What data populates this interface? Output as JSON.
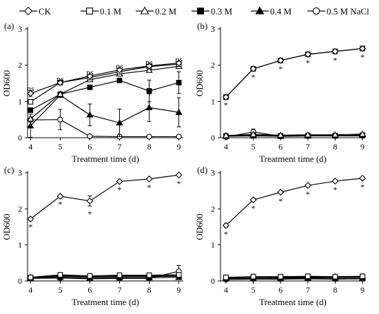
{
  "legend": {
    "entries": [
      {
        "label": "CK",
        "marker": "diamond-open"
      },
      {
        "label": "0.1 M",
        "marker": "square-open"
      },
      {
        "label": "0.2 M",
        "marker": "triangle-open"
      },
      {
        "label": "0.3 M",
        "marker": "square-filled"
      },
      {
        "label": "0.4 M",
        "marker": "triangle-filled"
      },
      {
        "label": "0.5 M NaCl",
        "marker": "circle-open"
      }
    ]
  },
  "chart_data": [
    {
      "type": "line",
      "panel_label": "(a)",
      "xlabel": "Treatment time (d)",
      "ylabel": "OD600",
      "x": [
        4,
        5,
        6,
        7,
        8,
        9
      ],
      "xlim": [
        3.9,
        9.15
      ],
      "ylim": [
        0,
        3
      ],
      "yticks": [
        0,
        1,
        2,
        3
      ],
      "series": [
        {
          "name": "CK",
          "marker": "diamond-open",
          "values": [
            1.22,
            1.52,
            1.7,
            1.87,
            1.98,
            2.06
          ],
          "errors": [
            0.08,
            0.04,
            0.04,
            0.04,
            0.04,
            0.04
          ]
        },
        {
          "name": "0.1 M",
          "marker": "square-open",
          "values": [
            0.99,
            1.52,
            1.66,
            1.82,
            1.96,
            2.03
          ],
          "errors": [
            0.06,
            0.04,
            0.04,
            0.04,
            0.04,
            0.04
          ]
        },
        {
          "name": "0.2 M",
          "marker": "triangle-open",
          "values": [
            0.52,
            1.2,
            1.6,
            1.76,
            1.86,
            1.97
          ],
          "errors": [
            0.05,
            0.05,
            0.04,
            0.04,
            0.04,
            0.04
          ]
        },
        {
          "name": "0.3 M",
          "marker": "square-filled",
          "values": [
            0.76,
            1.2,
            1.39,
            1.58,
            1.29,
            1.52
          ],
          "errors": [
            0.06,
            0.05,
            0.04,
            0.03,
            0.3,
            0.3
          ]
        },
        {
          "name": "0.4 M",
          "marker": "triangle-filled",
          "values": [
            0.33,
            1.17,
            0.63,
            0.41,
            0.83,
            0.7
          ],
          "errors": [
            0.32,
            0.05,
            0.3,
            0.38,
            0.38,
            0.4
          ]
        },
        {
          "name": "0.5 M NaCl",
          "marker": "circle-open",
          "values": [
            0.49,
            0.5,
            0.04,
            0.03,
            0.03,
            0.03
          ],
          "errors": [
            0.05,
            0.28,
            0.0,
            0.0,
            0.0,
            0.0
          ]
        }
      ],
      "annotations": [
        {
          "x": 4,
          "y": 1.36,
          "text": "ns"
        },
        {
          "x": 5,
          "y": 1.62,
          "text": "ns"
        },
        {
          "x": 6,
          "y": 1.8,
          "text": "ns"
        },
        {
          "x": 7,
          "y": 1.97,
          "text": "ns"
        },
        {
          "x": 8,
          "y": 2.08,
          "text": "ns"
        },
        {
          "x": 9,
          "y": 2.16,
          "text": "ns"
        }
      ]
    },
    {
      "type": "line",
      "panel_label": "(b)",
      "xlabel": "Treatment time (d)",
      "ylabel": "OD600",
      "x": [
        4,
        5,
        6,
        7,
        8,
        9
      ],
      "xlim": [
        3.8,
        9.1
      ],
      "ylim": [
        0,
        3
      ],
      "yticks": [
        0,
        1,
        2,
        3
      ],
      "series": [
        {
          "name": "CK",
          "marker": "diamond-open",
          "values": [
            1.12,
            1.9,
            2.13,
            2.3,
            2.38,
            2.46
          ],
          "errors": [
            0.05,
            0.03,
            0.03,
            0.03,
            0.03,
            0.03
          ]
        },
        {
          "name": "0.1 M",
          "marker": "square-open",
          "values": [
            1.12,
            1.9,
            2.13,
            2.3,
            2.38,
            2.46
          ],
          "errors": [
            0.05,
            0.03,
            0.03,
            0.03,
            0.03,
            0.03
          ]
        },
        {
          "name": "0.2 M",
          "marker": "triangle-open",
          "values": [
            0.06,
            0.09,
            0.07,
            0.08,
            0.08,
            0.1
          ],
          "errors": [
            0.02,
            0.04,
            0.02,
            0.02,
            0.02,
            0.02
          ]
        },
        {
          "name": "0.3 M",
          "marker": "square-filled",
          "values": [
            0.05,
            0.07,
            0.05,
            0.06,
            0.06,
            0.07
          ],
          "errors": [
            0.02,
            0.03,
            0.02,
            0.02,
            0.02,
            0.02
          ]
        },
        {
          "name": "0.4 M",
          "marker": "triangle-filled",
          "values": [
            0.04,
            0.05,
            0.04,
            0.05,
            0.05,
            0.08
          ],
          "errors": [
            0.02,
            0.02,
            0.02,
            0.02,
            0.02,
            0.02
          ]
        },
        {
          "name": "0.5 M NaCl",
          "marker": "circle-open",
          "values": [
            0.02,
            0.16,
            0.04,
            0.05,
            0.05,
            0.05
          ],
          "errors": [
            0.01,
            0.08,
            0.02,
            0.02,
            0.02,
            0.02
          ]
        }
      ],
      "annotations": [
        {
          "x": 4,
          "y": 0.9,
          "text": "*"
        },
        {
          "x": 5,
          "y": 1.67,
          "text": "*"
        },
        {
          "x": 6,
          "y": 1.9,
          "text": "*"
        },
        {
          "x": 7,
          "y": 2.07,
          "text": "*"
        },
        {
          "x": 8,
          "y": 2.14,
          "text": "*"
        },
        {
          "x": 9,
          "y": 2.22,
          "text": "*"
        }
      ]
    },
    {
      "type": "line",
      "panel_label": "(c)",
      "xlabel": "Treatment time (d)",
      "ylabel": "OD600",
      "x": [
        4,
        5,
        6,
        7,
        8,
        9
      ],
      "xlim": [
        3.9,
        9.15
      ],
      "ylim": [
        0,
        3
      ],
      "yticks": [
        0,
        1,
        2,
        3
      ],
      "series": [
        {
          "name": "CK",
          "marker": "diamond-open",
          "values": [
            1.72,
            2.35,
            2.22,
            2.76,
            2.83,
            2.94
          ],
          "errors": [
            0.03,
            0.03,
            0.14,
            0.03,
            0.03,
            0.03
          ]
        },
        {
          "name": "0.1 M",
          "marker": "square-open",
          "values": [
            0.1,
            0.17,
            0.14,
            0.16,
            0.16,
            0.17
          ],
          "errors": [
            0.02,
            0.03,
            0.03,
            0.03,
            0.03,
            0.03
          ]
        },
        {
          "name": "0.2 M",
          "marker": "triangle-open",
          "values": [
            0.1,
            0.15,
            0.12,
            0.14,
            0.14,
            0.16
          ],
          "errors": [
            0.02,
            0.03,
            0.03,
            0.03,
            0.03,
            0.03
          ]
        },
        {
          "name": "0.3 M",
          "marker": "square-filled",
          "values": [
            0.09,
            0.13,
            0.11,
            0.12,
            0.12,
            0.13
          ],
          "errors": [
            0.02,
            0.03,
            0.03,
            0.03,
            0.03,
            0.03
          ]
        },
        {
          "name": "0.4 M",
          "marker": "triangle-filled",
          "values": [
            0.08,
            0.1,
            0.08,
            0.09,
            0.09,
            0.1
          ],
          "errors": [
            0.02,
            0.02,
            0.02,
            0.02,
            0.02,
            0.02
          ]
        },
        {
          "name": "0.5 M NaCl",
          "marker": "circle-open",
          "values": [
            0.07,
            0.08,
            0.06,
            0.07,
            0.07,
            0.27
          ],
          "errors": [
            0.02,
            0.02,
            0.02,
            0.02,
            0.02,
            0.16
          ]
        }
      ],
      "annotations": [
        {
          "x": 4,
          "y": 1.5,
          "text": "*"
        },
        {
          "x": 5,
          "y": 2.13,
          "text": "*"
        },
        {
          "x": 6,
          "y": 1.86,
          "text": "*"
        },
        {
          "x": 7,
          "y": 2.53,
          "text": "*"
        },
        {
          "x": 8,
          "y": 2.6,
          "text": "*"
        },
        {
          "x": 9,
          "y": 2.7,
          "text": "*"
        }
      ]
    },
    {
      "type": "line",
      "panel_label": "(d)",
      "xlabel": "Treatment time (d)",
      "ylabel": "OD600",
      "x": [
        4,
        5,
        6,
        7,
        8,
        9
      ],
      "xlim": [
        3.8,
        9.1
      ],
      "ylim": [
        0,
        3
      ],
      "yticks": [
        0,
        1,
        2,
        3
      ],
      "series": [
        {
          "name": "CK",
          "marker": "diamond-open",
          "values": [
            1.54,
            2.25,
            2.46,
            2.65,
            2.77,
            2.85
          ],
          "errors": [
            0.05,
            0.03,
            0.03,
            0.03,
            0.03,
            0.03
          ]
        },
        {
          "name": "0.1 M",
          "marker": "square-open",
          "values": [
            0.1,
            0.12,
            0.12,
            0.13,
            0.12,
            0.13
          ],
          "errors": [
            0.02,
            0.02,
            0.02,
            0.02,
            0.02,
            0.02
          ]
        },
        {
          "name": "0.2 M",
          "marker": "triangle-open",
          "values": [
            0.09,
            0.11,
            0.1,
            0.12,
            0.11,
            0.12
          ],
          "errors": [
            0.02,
            0.02,
            0.02,
            0.02,
            0.02,
            0.02
          ]
        },
        {
          "name": "0.3 M",
          "marker": "square-filled",
          "values": [
            0.08,
            0.1,
            0.09,
            0.1,
            0.1,
            0.11
          ],
          "errors": [
            0.02,
            0.02,
            0.02,
            0.02,
            0.02,
            0.02
          ]
        },
        {
          "name": "0.4 M",
          "marker": "triangle-filled",
          "values": [
            0.06,
            0.07,
            0.07,
            0.08,
            0.07,
            0.08
          ],
          "errors": [
            0.02,
            0.02,
            0.02,
            0.02,
            0.02,
            0.02
          ]
        },
        {
          "name": "0.5 M NaCl",
          "marker": "circle-open",
          "values": [
            0.04,
            0.05,
            0.05,
            0.06,
            0.05,
            0.06
          ],
          "errors": [
            0.02,
            0.02,
            0.02,
            0.02,
            0.02,
            0.02
          ]
        }
      ],
      "annotations": [
        {
          "x": 4,
          "y": 1.3,
          "text": "*"
        },
        {
          "x": 5,
          "y": 2.02,
          "text": "*"
        },
        {
          "x": 6,
          "y": 2.22,
          "text": "*"
        },
        {
          "x": 7,
          "y": 2.41,
          "text": "*"
        },
        {
          "x": 8,
          "y": 2.53,
          "text": "*"
        },
        {
          "x": 9,
          "y": 2.61,
          "text": "*"
        }
      ]
    }
  ]
}
